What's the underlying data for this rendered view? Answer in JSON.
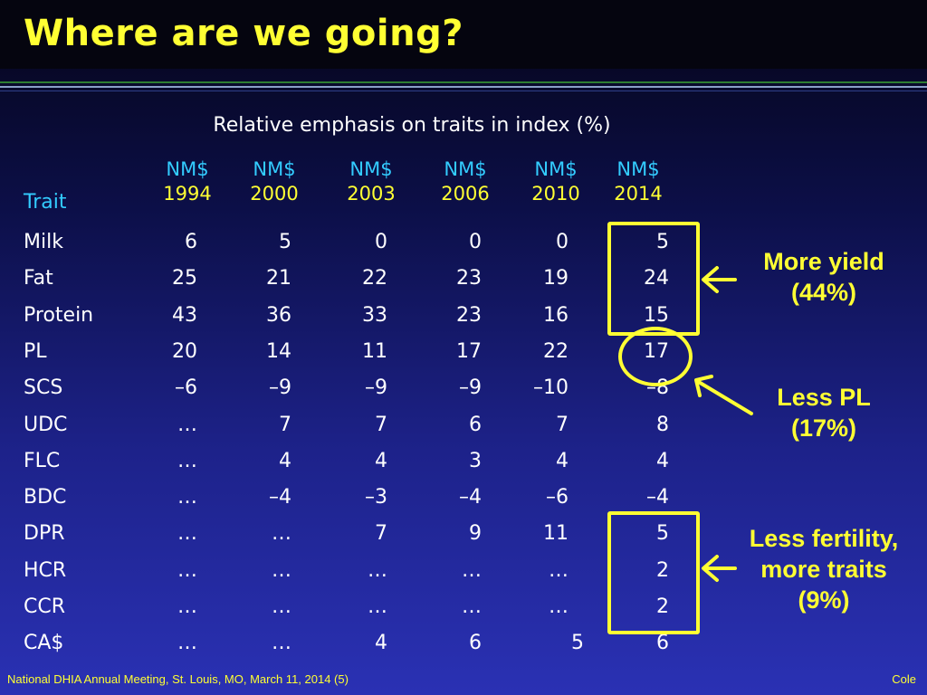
{
  "slide": {
    "title": "Where are we going?",
    "caption": "Relative emphasis on traits in index (%)",
    "trait_header": "Trait"
  },
  "columns": [
    {
      "index": "NM$",
      "year": "1994"
    },
    {
      "index": "NM$",
      "year": "2000"
    },
    {
      "index": "NM$",
      "year": "2003"
    },
    {
      "index": "NM$",
      "year": "2006"
    },
    {
      "index": "NM$",
      "year": "2010"
    },
    {
      "index": "NM$",
      "year": "2014"
    }
  ],
  "rows": [
    {
      "trait": "Milk",
      "values": [
        "6",
        "5",
        "0",
        "0",
        "0",
        "5"
      ]
    },
    {
      "trait": "Fat",
      "values": [
        "25",
        "21",
        "22",
        "23",
        "19",
        "24"
      ]
    },
    {
      "trait": "Protein",
      "values": [
        "43",
        "36",
        "33",
        "23",
        "16",
        "15"
      ]
    },
    {
      "trait": "PL",
      "values": [
        "20",
        "14",
        "11",
        "17",
        "22",
        "17"
      ]
    },
    {
      "trait": "SCS",
      "values": [
        "–6",
        "–9",
        "–9",
        "–9",
        "–10",
        "–8"
      ]
    },
    {
      "trait": "UDC",
      "values": [
        "…",
        "7",
        "7",
        "6",
        "7",
        "8"
      ]
    },
    {
      "trait": "FLC",
      "values": [
        "…",
        "4",
        "4",
        "3",
        "4",
        "4"
      ]
    },
    {
      "trait": "BDC",
      "values": [
        "…",
        "–4",
        "–3",
        "–4",
        "–6",
        "–4"
      ]
    },
    {
      "trait": "DPR",
      "values": [
        "…",
        "…",
        "7",
        "9",
        "11",
        "5"
      ]
    },
    {
      "trait": "HCR",
      "values": [
        "…",
        "…",
        "…",
        "…",
        "…",
        "2"
      ]
    },
    {
      "trait": "CCR",
      "values": [
        "…",
        "…",
        "…",
        "…",
        "…",
        "2"
      ]
    },
    {
      "trait": "CA$",
      "values": [
        "…",
        "…",
        "4",
        "6",
        "5",
        "6"
      ]
    }
  ],
  "callouts": {
    "yield": {
      "line1": "More yield",
      "line2": "(44%)"
    },
    "pl": {
      "line1": "Less PL",
      "line2": "(17%)"
    },
    "fertility": {
      "line1": "Less fertility,",
      "line2": "more traits",
      "line3": "(9%)"
    }
  },
  "footer": {
    "left": "National DHIA Annual Meeting, St. Louis, MO, March 11, 2014 (5)",
    "right": "Cole"
  },
  "colors": {
    "title": "#ffff33",
    "header_cyan": "#33ccff",
    "highlight": "#ffff33",
    "background_top": "#050518",
    "background_bottom": "#2a31b4"
  }
}
